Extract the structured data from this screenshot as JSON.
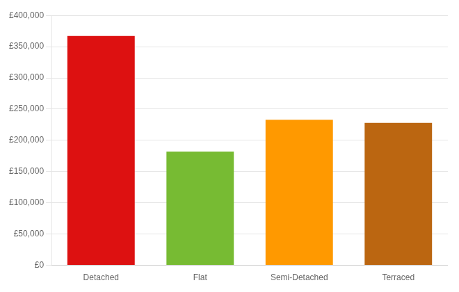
{
  "chart_data": {
    "type": "bar",
    "categories": [
      "Detached",
      "Flat",
      "Semi-Detached",
      "Terraced"
    ],
    "values": [
      367000,
      182000,
      233000,
      228000
    ],
    "colors": [
      "#dd1111",
      "#77bb33",
      "#ff9900",
      "#bb6611"
    ],
    "ylim": [
      0,
      400000
    ],
    "yticks": [
      {
        "value": 0,
        "label": "£0"
      },
      {
        "value": 50000,
        "label": "£50,000"
      },
      {
        "value": 100000,
        "label": "£100,000"
      },
      {
        "value": 150000,
        "label": "£150,000"
      },
      {
        "value": 200000,
        "label": "£200,000"
      },
      {
        "value": 250000,
        "label": "£250,000"
      },
      {
        "value": 300000,
        "label": "£300,000"
      },
      {
        "value": 350000,
        "label": "£350,000"
      },
      {
        "value": 400000,
        "label": "£400,000"
      }
    ],
    "grid": true
  }
}
